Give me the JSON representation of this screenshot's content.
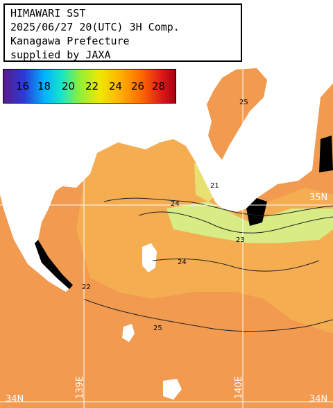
{
  "title": {
    "line1": "HIMAWARI SST",
    "line2": "2025/06/27 20(UTC) 3H Comp.",
    "line3": "Kanagawa Prefecture",
    "line4": "supplied by JAXA"
  },
  "legend": {
    "ticks": [
      "16",
      "18",
      "20",
      "22",
      "24",
      "26",
      "28"
    ],
    "colors": {
      "violet": "#5a1a8a",
      "blue": "#2a3ad8",
      "cyan": "#00b4ff",
      "green": "#8cef3a",
      "yellow": "#f0e800",
      "orange": "#ff6a00",
      "red": "#e01818"
    }
  },
  "grid_labels": {
    "lat_35": "35N",
    "lat_34": "34N",
    "lon_139": "139E",
    "lon_140": "140E"
  },
  "contours": [
    "21",
    "22",
    "23",
    "24",
    "25"
  ],
  "colors": {
    "land": "#ffffff",
    "sea_warm": "#f29a50",
    "sea_mid": "#f6b24e",
    "sea_cool": "#d6ef86",
    "coast": "#000000",
    "grid": "#ffffff"
  }
}
